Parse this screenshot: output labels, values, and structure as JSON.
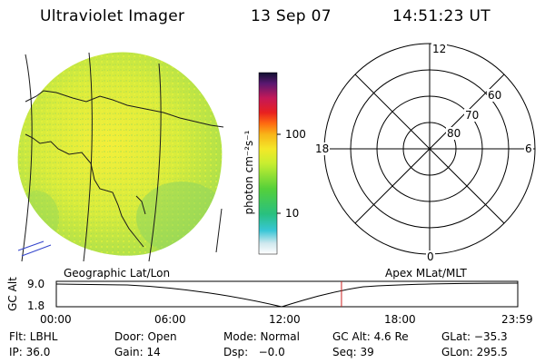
{
  "header": {
    "title": "Ultraviolet Imager",
    "date": "13 Sep 07",
    "time": "14:51:23 UT"
  },
  "colorbar": {
    "label": "photon cm⁻²s⁻¹",
    "tick_high": "100",
    "tick_low": "10"
  },
  "polar_plot": {
    "label_top": "12",
    "label_bottom": "0",
    "label_left": "18",
    "label_right": "6",
    "ring_60": "60",
    "ring_70": "70",
    "ring_80": "80"
  },
  "timeline": {
    "left_caption": "Geographic Lat/Lon",
    "right_caption": "Apex  MLat/MLT",
    "axis_title": "GC Alt",
    "y_top": "9.0",
    "y_bottom": "1.8",
    "ticks": [
      "00:00",
      "06:00",
      "12:00",
      "18:00",
      "23:59"
    ],
    "current_time_fraction": 0.618
  },
  "info": {
    "filter": "Flt: LBHL",
    "door": "Door: Open",
    "mode": "Mode: Normal",
    "gc_alt": "GC Alt: 4.6 Re",
    "glat": "GLat: −35.3",
    "ip": "IP: 36.0",
    "gain": "Gain: 14",
    "dsp": "Dsp:   −0.0",
    "seq": "Seq: 39",
    "glon": "GLon: 295.5"
  }
}
